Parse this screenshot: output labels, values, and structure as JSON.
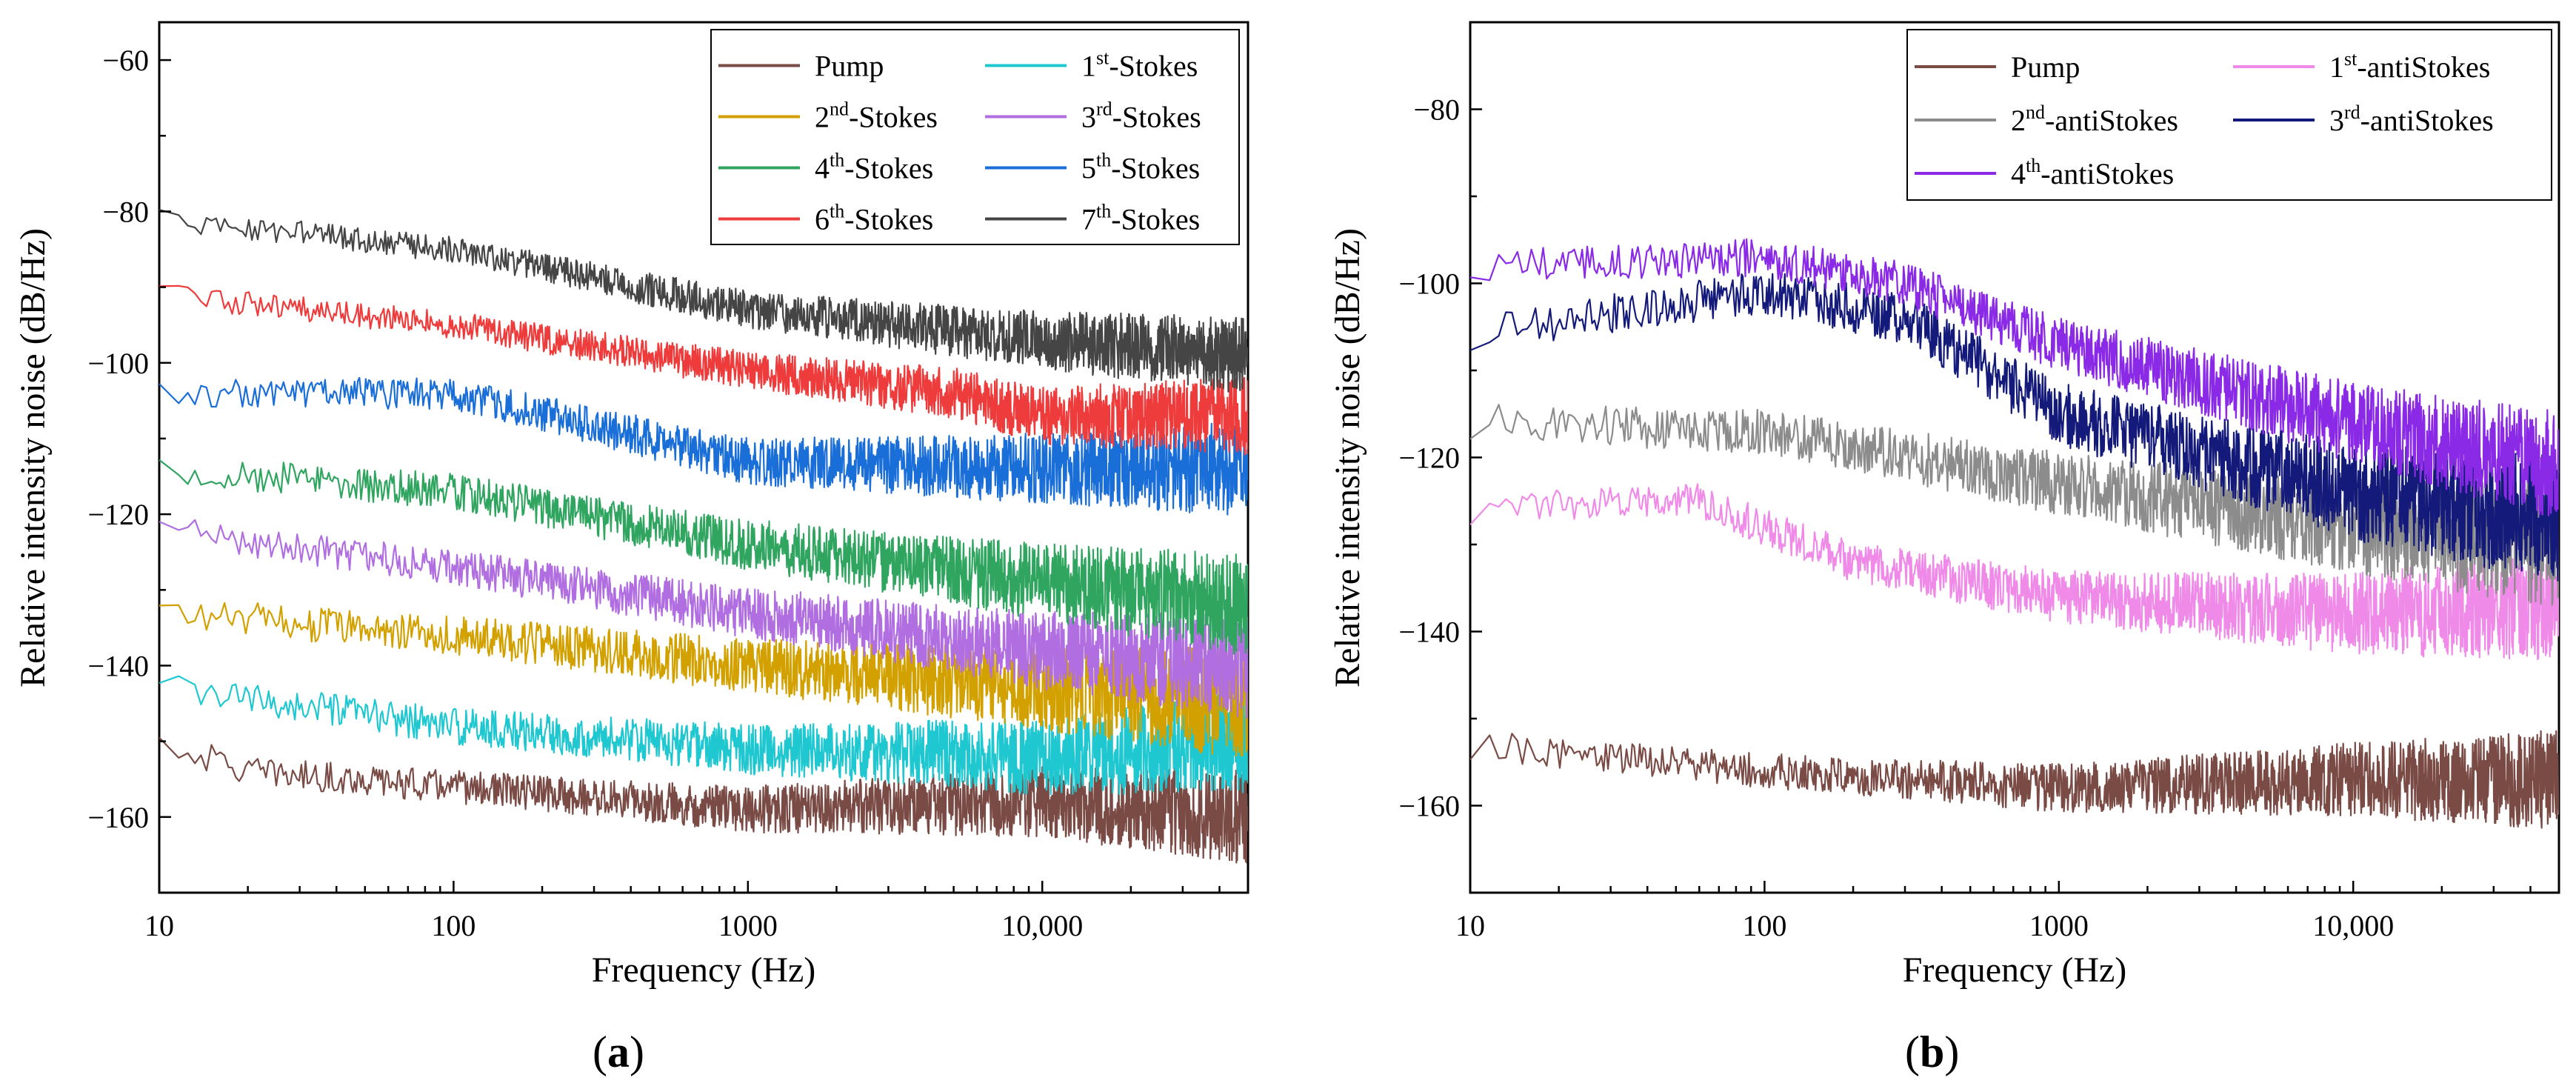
{
  "chart_data": [
    {
      "panel": "a",
      "panel_label": "(a)",
      "type": "line",
      "xscale": "log",
      "xlabel": "Frequency (Hz)",
      "ylabel": "Relative intensity noise (dB/Hz)",
      "xlim": [
        10,
        50000
      ],
      "ylim": [
        -170,
        -55
      ],
      "xticks": [
        10,
        100,
        1000,
        10000
      ],
      "xtick_labels": [
        "10",
        "100",
        "1000",
        "10,000"
      ],
      "yticks": [
        -160,
        -140,
        -120,
        -100,
        -80,
        -60
      ],
      "ytick_labels": [
        "−160",
        "−140",
        "−120",
        "−100",
        "−80",
        "−60"
      ],
      "legend_position": "top-right",
      "legend_columns": 2,
      "series": [
        {
          "name": "Pump",
          "base": "Pump",
          "sup": "",
          "suffix": "",
          "color": "#7a4a45",
          "noise": 2.2,
          "points": [
            [
              10,
              -150
            ],
            [
              20,
              -154
            ],
            [
              100,
              -156
            ],
            [
              1000,
              -159
            ],
            [
              10000,
              -158
            ],
            [
              50000,
              -160
            ]
          ]
        },
        {
          "name": "1st-Stokes",
          "base": "1",
          "sup": "st",
          "suffix": "-Stokes",
          "color": "#1fc8d0",
          "noise": 2.4,
          "points": [
            [
              10,
              -143
            ],
            [
              100,
              -148
            ],
            [
              1000,
              -151
            ],
            [
              10000,
              -152
            ],
            [
              50000,
              -150
            ]
          ]
        },
        {
          "name": "2nd-Stokes",
          "base": "2",
          "sup": "nd",
          "suffix": "-Stokes",
          "color": "#d2a100",
          "noise": 2.6,
          "points": [
            [
              10,
              -133
            ],
            [
              100,
              -136
            ],
            [
              1000,
              -140
            ],
            [
              10000,
              -143
            ],
            [
              50000,
              -145
            ]
          ]
        },
        {
          "name": "3rd-Stokes",
          "base": "3",
          "sup": "rd",
          "suffix": "-Stokes",
          "color": "#b06ee0",
          "noise": 2.4,
          "points": [
            [
              10,
              -122
            ],
            [
              100,
              -127
            ],
            [
              1000,
              -133
            ],
            [
              10000,
              -138
            ],
            [
              50000,
              -140
            ]
          ]
        },
        {
          "name": "4th-Stokes",
          "base": "4",
          "sup": "th",
          "suffix": "-Stokes",
          "color": "#30a560",
          "noise": 2.4,
          "points": [
            [
              10,
              -114
            ],
            [
              100,
              -117
            ],
            [
              1000,
              -124
            ],
            [
              10000,
              -129
            ],
            [
              50000,
              -132
            ]
          ]
        },
        {
          "name": "5th-Stokes",
          "base": "5",
          "sup": "th",
          "suffix": "-Stokes",
          "color": "#1a6ed8",
          "noise": 2.2,
          "points": [
            [
              10,
              -104
            ],
            [
              100,
              -104
            ],
            [
              1000,
              -113
            ],
            [
              10000,
              -114
            ],
            [
              50000,
              -114
            ]
          ]
        },
        {
          "name": "6th-Stokes",
          "base": "6",
          "sup": "th",
          "suffix": "-Stokes",
          "color": "#ee3b3b",
          "noise": 1.8,
          "points": [
            [
              10,
              -91
            ],
            [
              100,
              -95
            ],
            [
              1000,
              -101
            ],
            [
              5000,
              -104
            ],
            [
              10000,
              -107
            ],
            [
              50000,
              -107
            ]
          ]
        },
        {
          "name": "7th-Stokes",
          "base": "7",
          "sup": "th",
          "suffix": "-Stokes",
          "color": "#454545",
          "noise": 1.8,
          "points": [
            [
              10,
              -81
            ],
            [
              100,
              -85
            ],
            [
              1000,
              -93
            ],
            [
              10000,
              -97
            ],
            [
              50000,
              -99
            ]
          ]
        }
      ]
    },
    {
      "panel": "b",
      "panel_label": "(b)",
      "type": "line",
      "xscale": "log",
      "xlabel": "Frequency (Hz)",
      "ylabel": "Relative intensity noise (dB/Hz)",
      "xlim": [
        10,
        50000
      ],
      "ylim": [
        -170,
        -70
      ],
      "xticks": [
        10,
        100,
        1000,
        10000
      ],
      "xtick_labels": [
        "10",
        "100",
        "1000",
        "10,000"
      ],
      "yticks": [
        -160,
        -140,
        -120,
        -100,
        -80
      ],
      "ytick_labels": [
        "−160",
        "−140",
        "−120",
        "−100",
        "−80"
      ],
      "legend_position": "top-right",
      "legend_columns": 2,
      "series": [
        {
          "name": "Pump",
          "base": "Pump",
          "sup": "",
          "suffix": "",
          "color": "#7a4a45",
          "noise": 2.0,
          "points": [
            [
              10,
              -153
            ],
            [
              100,
              -156
            ],
            [
              1000,
              -158
            ],
            [
              10000,
              -157
            ],
            [
              50000,
              -157
            ]
          ]
        },
        {
          "name": "1st-antiStokes",
          "base": "1",
          "sup": "st",
          "suffix": "-antiStokes",
          "color": "#f08ae8",
          "noise": 2.2,
          "points": [
            [
              10,
              -126
            ],
            [
              60,
              -125
            ],
            [
              200,
              -132
            ],
            [
              1000,
              -136
            ],
            [
              10000,
              -138
            ],
            [
              50000,
              -137
            ]
          ]
        },
        {
          "name": "2nd-antiStokes",
          "base": "2",
          "sup": "nd",
          "suffix": "-antiStokes",
          "color": "#8c8c8c",
          "noise": 2.6,
          "points": [
            [
              10,
              -116
            ],
            [
              100,
              -117
            ],
            [
              1000,
              -123
            ],
            [
              10000,
              -128
            ],
            [
              50000,
              -130
            ]
          ]
        },
        {
          "name": "3rd-antiStokes",
          "base": "3",
          "sup": "rd",
          "suffix": "-antiStokes",
          "color": "#141a7a",
          "noise": 2.6,
          "points": [
            [
              10,
              -106
            ],
            [
              100,
              -101
            ],
            [
              300,
              -104
            ],
            [
              1000,
              -115
            ],
            [
              10000,
              -124
            ],
            [
              50000,
              -127
            ]
          ]
        },
        {
          "name": "4th-antiStokes",
          "base": "4",
          "sup": "th",
          "suffix": "-antiStokes",
          "color": "#8a2ae6",
          "noise": 2.2,
          "points": [
            [
              10,
              -98
            ],
            [
              100,
              -97
            ],
            [
              300,
              -100
            ],
            [
              1000,
              -107
            ],
            [
              10000,
              -116
            ],
            [
              50000,
              -121
            ]
          ]
        }
      ]
    }
  ]
}
